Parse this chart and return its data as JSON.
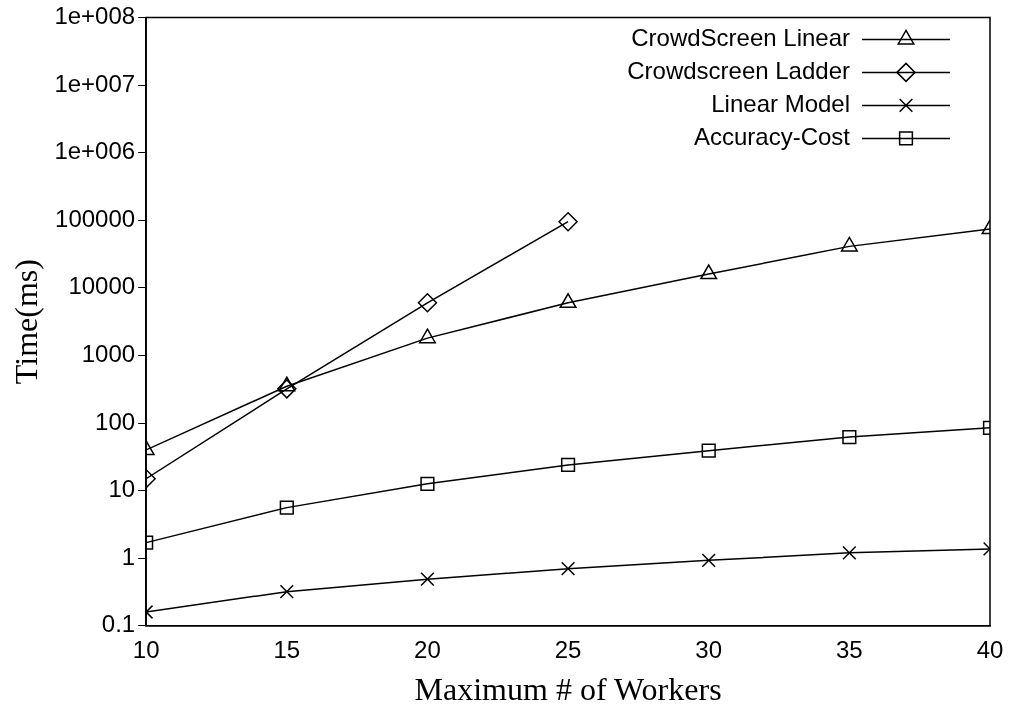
{
  "chart_data": {
    "type": "line",
    "xlabel": "Maximum # of Workers",
    "ylabel": "Time(ms)",
    "log": "y",
    "grid": false,
    "legend": "top right",
    "line_style": "solid",
    "x": [
      10,
      15,
      20,
      25,
      30,
      35,
      40
    ],
    "xlim": [
      10,
      40
    ],
    "xticks": [
      10,
      15,
      20,
      25,
      30,
      35,
      40
    ],
    "ylim": [
      0.1,
      100000000
    ],
    "yticks": [
      0.1,
      1,
      10,
      100,
      1000,
      10000,
      100000,
      {
        "value": 1000000,
        "label": "1e+006"
      },
      {
        "value": 10000000,
        "label": "1e+007"
      },
      {
        "value": 100000000,
        "label": "1e+008"
      }
    ],
    "series": [
      {
        "name": "CrowdScreen Linear",
        "color": "#000000",
        "marker": "triangle",
        "values": [
          40,
          350,
          1800,
          6000,
          16000,
          41000,
          74000
        ]
      },
      {
        "name": "Crowdscreen Ladder",
        "color": "#000000",
        "marker": "diamond",
        "values": [
          15,
          320,
          6000,
          95000,
          null,
          null,
          null
        ]
      },
      {
        "name": "Linear Model",
        "color": "#000000",
        "marker": "cross",
        "values": [
          0.16,
          0.32,
          0.49,
          0.7,
          0.93,
          1.2,
          1.37
        ]
      },
      {
        "name": "Accuracy-Cost",
        "color": "#000000",
        "marker": "square",
        "values": [
          1.7,
          5.6,
          12.6,
          24,
          39,
          62,
          85
        ]
      }
    ]
  }
}
